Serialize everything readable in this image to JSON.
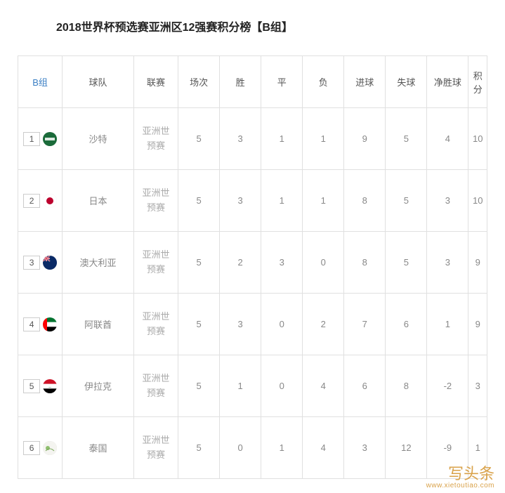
{
  "title": "2018世界杯预选赛亚洲区12强赛积分榜【B组】",
  "headers": {
    "group": "B组",
    "team": "球队",
    "league": "联赛",
    "played": "场次",
    "win": "胜",
    "draw": "平",
    "loss": "负",
    "gf": "进球",
    "ga": "失球",
    "gd": "净胜球",
    "pts": "积分"
  },
  "league_label": "亚洲世预赛",
  "rows": [
    {
      "rank": "1",
      "team": "沙特",
      "flag": "sa",
      "p": "5",
      "w": "3",
      "d": "1",
      "l": "1",
      "gf": "9",
      "ga": "5",
      "gd": "4",
      "pts": "10"
    },
    {
      "rank": "2",
      "team": "日本",
      "flag": "jp",
      "p": "5",
      "w": "3",
      "d": "1",
      "l": "1",
      "gf": "8",
      "ga": "5",
      "gd": "3",
      "pts": "10"
    },
    {
      "rank": "3",
      "team": "澳大利亚",
      "flag": "au",
      "p": "5",
      "w": "2",
      "d": "3",
      "l": "0",
      "gf": "8",
      "ga": "5",
      "gd": "3",
      "pts": "9"
    },
    {
      "rank": "4",
      "team": "阿联酋",
      "flag": "ae",
      "p": "5",
      "w": "3",
      "d": "0",
      "l": "2",
      "gf": "7",
      "ga": "6",
      "gd": "1",
      "pts": "9"
    },
    {
      "rank": "5",
      "team": "伊拉克",
      "flag": "iq",
      "p": "5",
      "w": "1",
      "d": "0",
      "l": "4",
      "gf": "6",
      "ga": "8",
      "gd": "-2",
      "pts": "3"
    },
    {
      "rank": "6",
      "team": "泰国",
      "flag": "th",
      "p": "5",
      "w": "0",
      "d": "1",
      "l": "4",
      "gf": "3",
      "ga": "12",
      "gd": "-9",
      "pts": "1"
    }
  ],
  "watermark": {
    "top": "写头条",
    "bottom": "www.xietoutiao.com"
  },
  "flag_svgs": {
    "sa": "<svg viewBox='0 0 20 20'><rect width='20' height='20' fill='#1b6b3a'/><rect x='3' y='8' width='14' height='4' fill='#ffffff' opacity='0.85'/></svg>",
    "jp": "<svg viewBox='0 0 20 20'><rect width='20' height='20' fill='#ffffff'/><circle cx='10' cy='10' r='5' fill='#bc002d'/></svg>",
    "au": "<svg viewBox='0 0 20 20'><rect width='20' height='20' fill='#0a2a66'/><rect width='10' height='8' fill='#0a2a66'/><path d='M0 0 L10 8 M10 0 L0 8' stroke='#fff' stroke-width='1.5'/><path d='M0 0 L10 8 M10 0 L0 8' stroke='#c8102e' stroke-width='0.8'/><rect x='4' width='2' height='8' fill='#fff'/><rect y='3' width='10' height='2' fill='#fff'/><rect x='4.5' width='1' height='8' fill='#c8102e'/><rect y='3.5' width='10' height='1' fill='#c8102e'/></svg>",
    "ae": "<svg viewBox='0 0 20 20'><rect width='20' height='6.67' fill='#00732f'/><rect y='6.67' width='20' height='6.67' fill='#ffffff'/><rect y='13.33' width='20' height='6.67' fill='#000000'/><rect width='6' height='20' fill='#ff0000'/></svg>",
    "iq": "<svg viewBox='0 0 20 20'><rect width='20' height='6.67' fill='#ce1126'/><rect y='6.67' width='20' height='6.67' fill='#ffffff'/><rect y='13.33' width='20' height='6.67' fill='#000000'/><text x='10' y='12' font-size='4' fill='#007a3d' text-anchor='middle'>ـــ</text></svg>",
    "th": "<svg viewBox='0 0 20 20'><rect width='20' height='20' fill='#f4f4f0'/><circle cx='7' cy='10' r='3' fill='#8fbf6f'/><path d='M4 14 Q10 8 16 14' stroke='#7aa85a' stroke-width='1' fill='none'/></svg>"
  }
}
